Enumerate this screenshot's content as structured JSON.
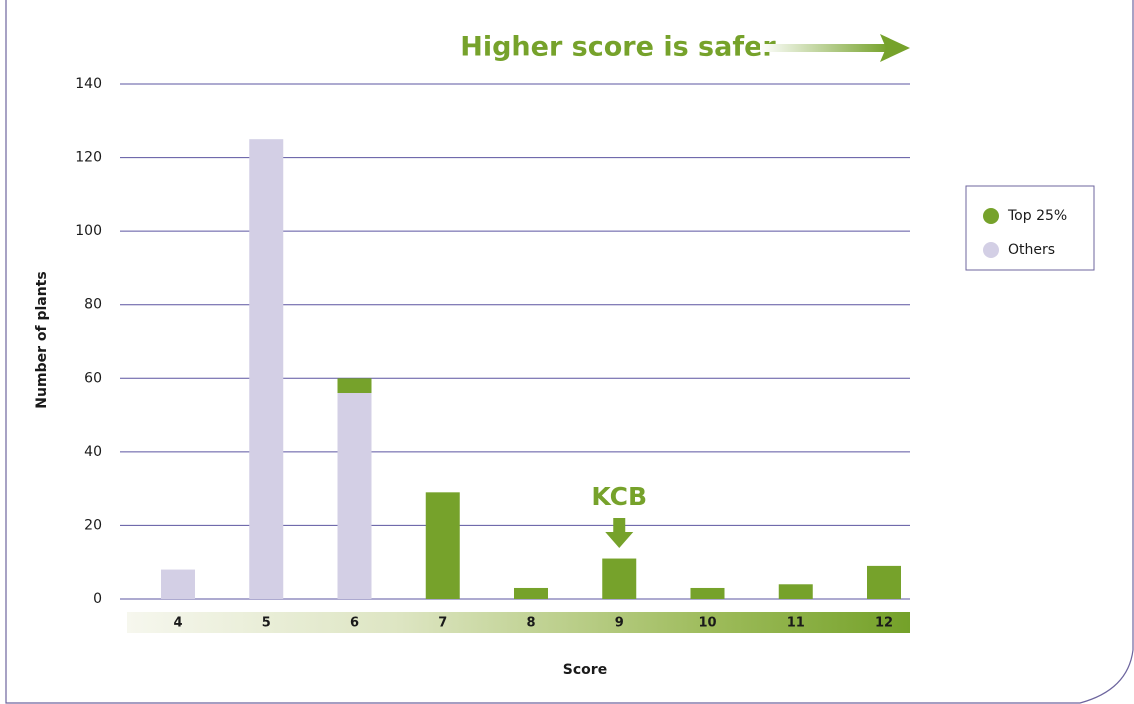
{
  "chart_data": {
    "type": "bar",
    "stacked": true,
    "title": "Higher score is safer",
    "annotation": "KCB",
    "x_label": "Score",
    "y_label": "Number of plants",
    "categories": [
      "4",
      "5",
      "6",
      "7",
      "8",
      "9",
      "10",
      "11",
      "12"
    ],
    "series": [
      {
        "name": "Top 25%",
        "color": "#76a22b",
        "values": [
          0,
          0,
          4,
          29,
          3,
          11,
          3,
          4,
          9
        ]
      },
      {
        "name": "Others",
        "color": "#d3cfe5",
        "values": [
          8,
          125,
          56,
          0,
          0,
          0,
          0,
          0,
          0
        ]
      }
    ],
    "ylim": [
      0,
      140
    ],
    "yticks": [
      0,
      20,
      40,
      60,
      80,
      100,
      120,
      140
    ],
    "grid": true,
    "legend": "right"
  }
}
